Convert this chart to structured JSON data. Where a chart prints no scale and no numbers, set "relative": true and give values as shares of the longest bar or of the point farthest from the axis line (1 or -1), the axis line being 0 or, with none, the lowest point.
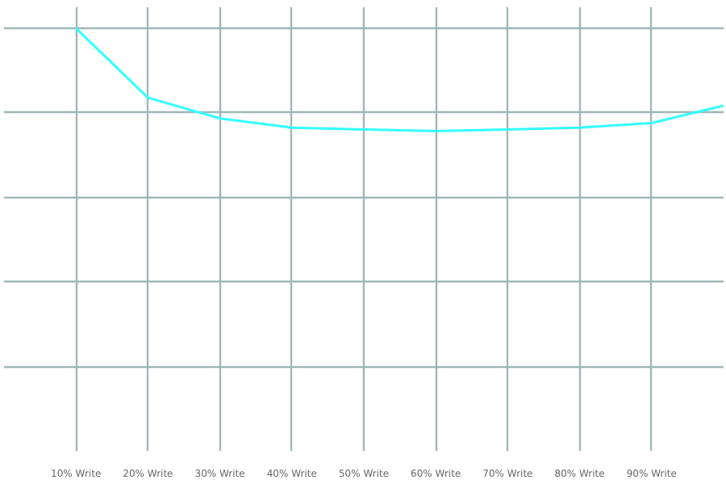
{
  "chart_data": {
    "type": "line",
    "relative": true,
    "grid": true,
    "marker": "none",
    "line_style": "solid",
    "categories": [
      "10% Write",
      "20% Write",
      "30% Write",
      "40% Write",
      "50% Write",
      "60% Write",
      "70% Write",
      "80% Write",
      "90% Write",
      null
    ],
    "series": [
      {
        "color": "#33ffff",
        "values": [
          1,
          0.836,
          0.787,
          0.765,
          0.761,
          0.757,
          0.761,
          0.765,
          0.776,
          0.817
        ]
      }
    ]
  }
}
